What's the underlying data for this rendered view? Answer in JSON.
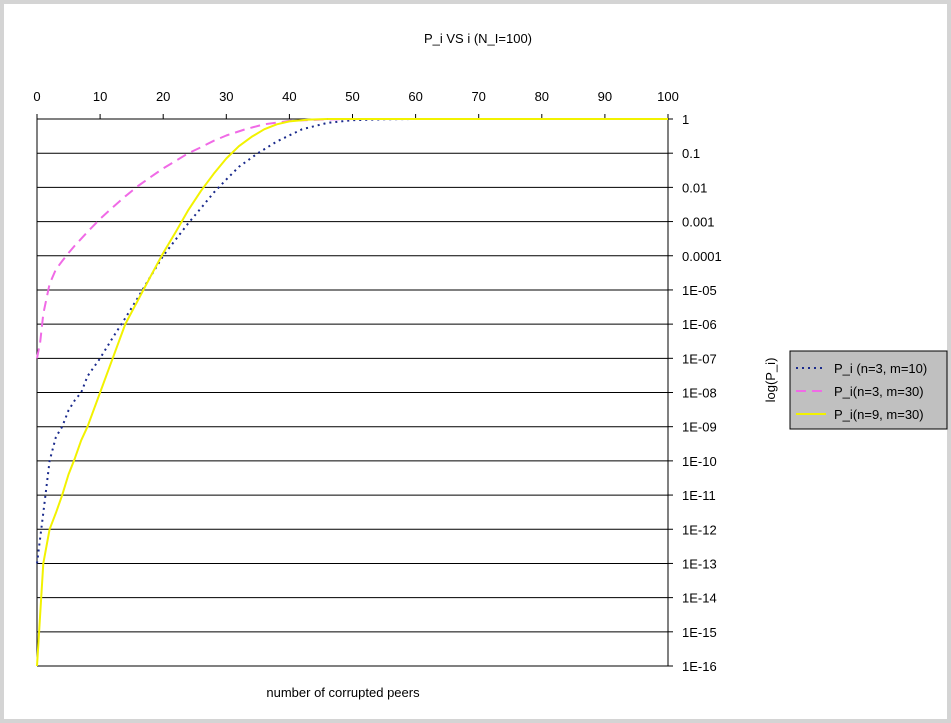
{
  "chart_data": {
    "type": "line",
    "title": "P_i VS i (N_I=100)",
    "xlabel": "number of corrupted peers",
    "ylabel": "log(P_i)",
    "xlim": [
      0,
      100
    ],
    "x_ticks": [
      "0",
      "10",
      "20",
      "30",
      "40",
      "50",
      "60",
      "70",
      "80",
      "90",
      "100"
    ],
    "y_scale": "log",
    "ylim": [
      1e-16,
      1
    ],
    "y_ticks": [
      "1",
      "0.1",
      "0.01",
      "0.001",
      "0.0001",
      "1E-05",
      "1E-06",
      "1E-07",
      "1E-08",
      "1E-09",
      "1E-10",
      "1E-11",
      "1E-12",
      "1E-13",
      "1E-14",
      "1E-15",
      "1E-16"
    ],
    "grid": "horizontal",
    "legend_position": "right",
    "series": [
      {
        "name": "P_i (n=3, m=10)",
        "color": "#1a2a8c",
        "style": "dotted",
        "x": [
          0,
          1,
          2,
          3,
          4,
          5,
          6,
          7,
          8,
          10,
          12,
          14,
          16,
          18,
          20,
          22,
          24,
          26,
          28,
          30,
          32,
          35,
          38,
          42,
          46,
          50,
          55,
          60
        ],
        "y": [
          1e-13,
          3e-12,
          1e-10,
          5e-10,
          1e-09,
          3e-09,
          6e-09,
          1e-08,
          3e-08,
          1e-07,
          4e-07,
          1.5e-06,
          6e-06,
          2.5e-05,
          0.0001,
          0.0003,
          0.0009,
          0.0025,
          0.007,
          0.017,
          0.04,
          0.1,
          0.22,
          0.5,
          0.77,
          0.92,
          0.98,
          1
        ]
      },
      {
        "name": "P_i(n=3, m=30)",
        "color": "#f06ae6",
        "style": "dashed",
        "x": [
          0,
          0.5,
          1,
          2,
          3,
          4,
          5,
          6,
          8,
          10,
          12,
          14,
          16,
          18,
          20,
          22,
          24,
          26,
          28,
          30,
          33,
          36,
          40,
          45,
          50
        ],
        "y": [
          1e-07,
          3e-07,
          2e-06,
          1.5e-05,
          4e-05,
          7e-05,
          0.00012,
          0.0002,
          0.0005,
          0.0012,
          0.0026,
          0.0055,
          0.011,
          0.02,
          0.036,
          0.06,
          0.1,
          0.15,
          0.23,
          0.33,
          0.5,
          0.7,
          0.88,
          0.97,
          1
        ]
      },
      {
        "name": "P_i(n=9, m=30)",
        "color": "#f2f200",
        "style": "solid",
        "x": [
          0,
          1,
          2,
          3,
          4,
          5,
          6,
          7,
          8,
          10,
          12,
          14,
          16,
          18,
          20,
          22,
          24,
          26,
          28,
          30,
          32,
          34,
          36,
          38,
          40,
          43,
          46
        ],
        "y": [
          1e-16,
          1e-13,
          1e-12,
          3e-12,
          1e-11,
          4e-11,
          1.2e-10,
          4e-10,
          1e-09,
          1e-08,
          1e-07,
          1e-06,
          5e-06,
          2.5e-05,
          0.00012,
          0.0005,
          0.0022,
          0.008,
          0.025,
          0.07,
          0.16,
          0.3,
          0.5,
          0.7,
          0.85,
          0.96,
          1
        ]
      }
    ]
  }
}
